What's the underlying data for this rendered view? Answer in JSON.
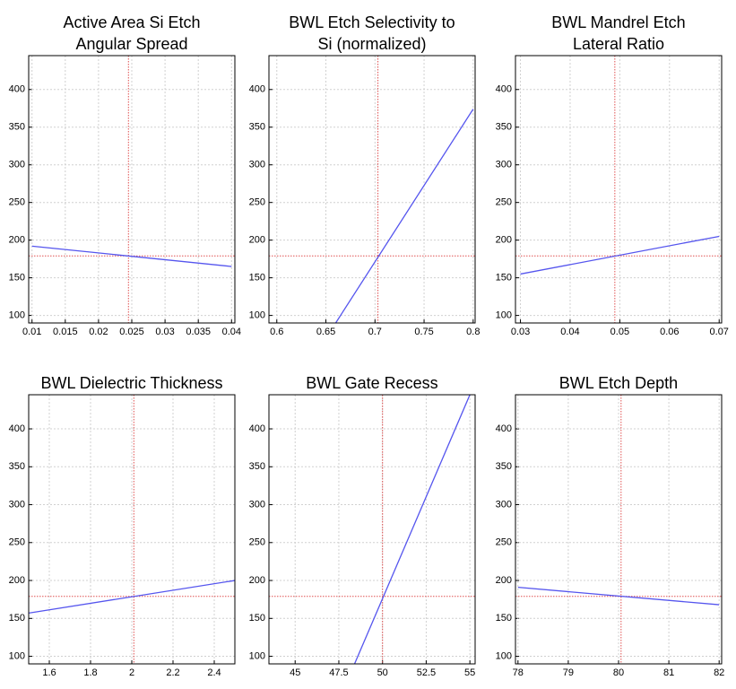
{
  "chart_data": [
    {
      "type": "line",
      "title": [
        "Active Area Si Etch",
        "Angular Spread"
      ],
      "x": [
        0.01,
        0.04
      ],
      "values": [
        192,
        165
      ],
      "color": "#5555ee",
      "xlim": [
        0.0095,
        0.0405
      ],
      "xticks": [
        0.01,
        0.015,
        0.02,
        0.025,
        0.03,
        0.035,
        0.04
      ],
      "ylim": [
        90,
        445
      ],
      "yticks": [
        100,
        150,
        200,
        250,
        300,
        350,
        400
      ],
      "grid": true,
      "ref_x": 0.0245,
      "ref_y": 179,
      "ref_color": "#e05050"
    },
    {
      "type": "line",
      "title": [
        "BWL Etch Selectivity to",
        "Si (normalized)"
      ],
      "x": [
        0.66,
        0.8
      ],
      "values": [
        90,
        374
      ],
      "color": "#5555ee",
      "xlim": [
        0.592,
        0.802
      ],
      "xticks": [
        0.6,
        0.65,
        0.7,
        0.75,
        0.8
      ],
      "ylim": [
        90,
        445
      ],
      "yticks": [
        100,
        150,
        200,
        250,
        300,
        350,
        400
      ],
      "grid": true,
      "ref_x": 0.703,
      "ref_y": 179,
      "ref_color": "#e05050"
    },
    {
      "type": "line",
      "title": [
        "BWL Mandrel Etch",
        "Lateral Ratio"
      ],
      "x": [
        0.03,
        0.07
      ],
      "values": [
        155,
        205
      ],
      "color": "#5555ee",
      "xlim": [
        0.029,
        0.0705
      ],
      "xticks": [
        0.03,
        0.04,
        0.05,
        0.06,
        0.07
      ],
      "ylim": [
        90,
        445
      ],
      "yticks": [
        100,
        150,
        200,
        250,
        300,
        350,
        400
      ],
      "grid": true,
      "ref_x": 0.049,
      "ref_y": 179,
      "ref_color": "#e05050"
    },
    {
      "type": "line",
      "title": [
        "BWL Dielectric Thickness"
      ],
      "x": [
        1.5,
        2.5
      ],
      "values": [
        157,
        200
      ],
      "color": "#5555ee",
      "xlim": [
        1.5,
        2.5
      ],
      "xticks": [
        1.6,
        1.8,
        2,
        2.2,
        2.4
      ],
      "ylim": [
        90,
        445
      ],
      "yticks": [
        100,
        150,
        200,
        250,
        300,
        350,
        400
      ],
      "grid": true,
      "ref_x": 2.01,
      "ref_y": 179,
      "ref_color": "#e05050"
    },
    {
      "type": "line",
      "title": [
        "BWL Gate Recess"
      ],
      "x": [
        48.4,
        55
      ],
      "values": [
        90,
        445
      ],
      "color": "#5555ee",
      "xlim": [
        43.5,
        55.3
      ],
      "xticks": [
        45,
        47.5,
        50,
        52.5,
        55
      ],
      "ylim": [
        90,
        445
      ],
      "yticks": [
        100,
        150,
        200,
        250,
        300,
        350,
        400
      ],
      "grid": true,
      "ref_x": 50,
      "ref_y": 179,
      "ref_color": "#e05050"
    },
    {
      "type": "line",
      "title": [
        "BWL Etch Depth"
      ],
      "x": [
        78,
        82
      ],
      "values": [
        191,
        168
      ],
      "color": "#5555ee",
      "xlim": [
        77.95,
        82.05
      ],
      "xticks": [
        78,
        79,
        80,
        81,
        82
      ],
      "ylim": [
        90,
        445
      ],
      "yticks": [
        100,
        150,
        200,
        250,
        300,
        350,
        400
      ],
      "grid": true,
      "ref_x": 80.05,
      "ref_y": 179,
      "ref_color": "#e05050"
    }
  ]
}
